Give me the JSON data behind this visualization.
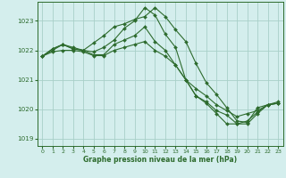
{
  "title": "Graphe pression niveau de la mer (hPa)",
  "bg_color": "#d4eeed",
  "grid_color": "#a8cfc8",
  "line_color": "#2d6b2d",
  "xlim": [
    -0.5,
    23.5
  ],
  "ylim": [
    1018.75,
    1023.65
  ],
  "yticks": [
    1019,
    1020,
    1021,
    1022,
    1023
  ],
  "xticks": [
    0,
    1,
    2,
    3,
    4,
    5,
    6,
    7,
    8,
    9,
    10,
    11,
    12,
    13,
    14,
    15,
    16,
    17,
    18,
    19,
    20,
    21,
    22,
    23
  ],
  "series": [
    [
      1021.8,
      1022.05,
      1022.2,
      1022.1,
      1022.0,
      1022.25,
      1022.5,
      1022.8,
      1022.9,
      1023.05,
      1023.15,
      1023.45,
      1023.15,
      1022.7,
      1022.3,
      1021.55,
      1020.9,
      1020.5,
      1020.05,
      1019.6,
      1019.55,
      1020.05,
      1020.15,
      1020.25
    ],
    [
      1021.8,
      1022.05,
      1022.2,
      1022.05,
      1022.0,
      1021.95,
      1022.1,
      1022.35,
      1022.75,
      1023.0,
      1023.45,
      1023.2,
      1022.55,
      1022.1,
      1021.0,
      1020.45,
      1020.2,
      1019.85,
      1019.5,
      1019.5,
      1019.6,
      1019.9,
      1020.15,
      1020.2
    ],
    [
      1021.8,
      1022.0,
      1022.2,
      1022.05,
      1022.0,
      1021.85,
      1021.85,
      1022.2,
      1022.35,
      1022.5,
      1022.8,
      1022.3,
      1022.0,
      1021.5,
      1021.0,
      1020.45,
      1020.25,
      1019.95,
      1019.8,
      1019.5,
      1019.5,
      1019.85,
      1020.15,
      1020.2
    ],
    [
      1021.8,
      1021.95,
      1022.0,
      1022.0,
      1021.95,
      1021.82,
      1021.82,
      1022.0,
      1022.1,
      1022.2,
      1022.3,
      1022.0,
      1021.8,
      1021.5,
      1021.0,
      1020.7,
      1020.45,
      1020.15,
      1019.95,
      1019.75,
      1019.85,
      1019.95,
      1020.15,
      1020.2
    ]
  ]
}
